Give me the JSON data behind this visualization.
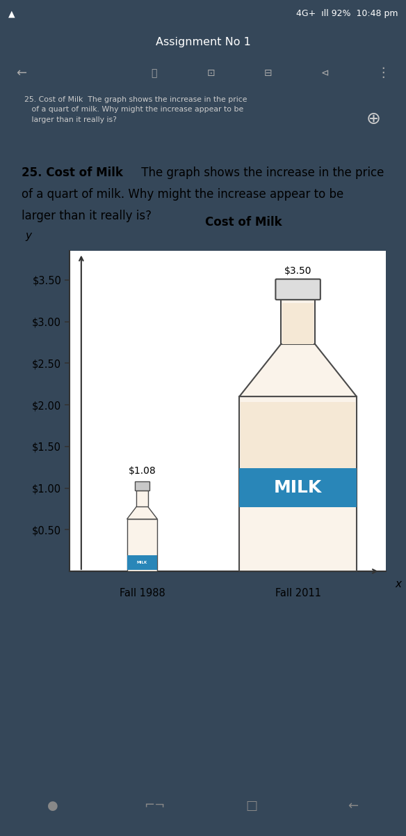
{
  "bg_dark": "#354759",
  "bg_white": "#ffffff",
  "bg_bottom": "#2c2c2c",
  "status_bar_color": "#3d5570",
  "header_color": "#3d5570",
  "nav_color": "#2e3f52",
  "preview_bg": "#354759",
  "chart_title": "Cost of Milk",
  "yticks": [
    "$0.50",
    "$1.00",
    "$1.50",
    "$2.00",
    "$2.50",
    "$3.00",
    "$3.50"
  ],
  "ytick_vals": [
    0.5,
    1.0,
    1.5,
    2.0,
    2.5,
    3.0,
    3.5
  ],
  "xlabel_1988": "Fall 1988",
  "xlabel_2011": "Fall 2011",
  "val_1988": 1.08,
  "val_2011": 3.5,
  "label_1988": "$1.08",
  "label_2011": "$3.50",
  "bottle_fill": "#faf3ea",
  "bottle_cream": "#f5e8d5",
  "bottle_outline": "#4a4a4a",
  "label_blue": "#2986b8",
  "axis_color": "#333333",
  "white_card_border": "#dddddd",
  "question_bold": "25. Cost of Milk",
  "question_rest": "  The graph shows the increase in the price\nof a quart of milk. Why might the increase appear to be\nlarger than it really is?",
  "assignment_text": "Assignment No 1",
  "status_text": "4G⁺  ▾ ll 92%  10:48 pm"
}
